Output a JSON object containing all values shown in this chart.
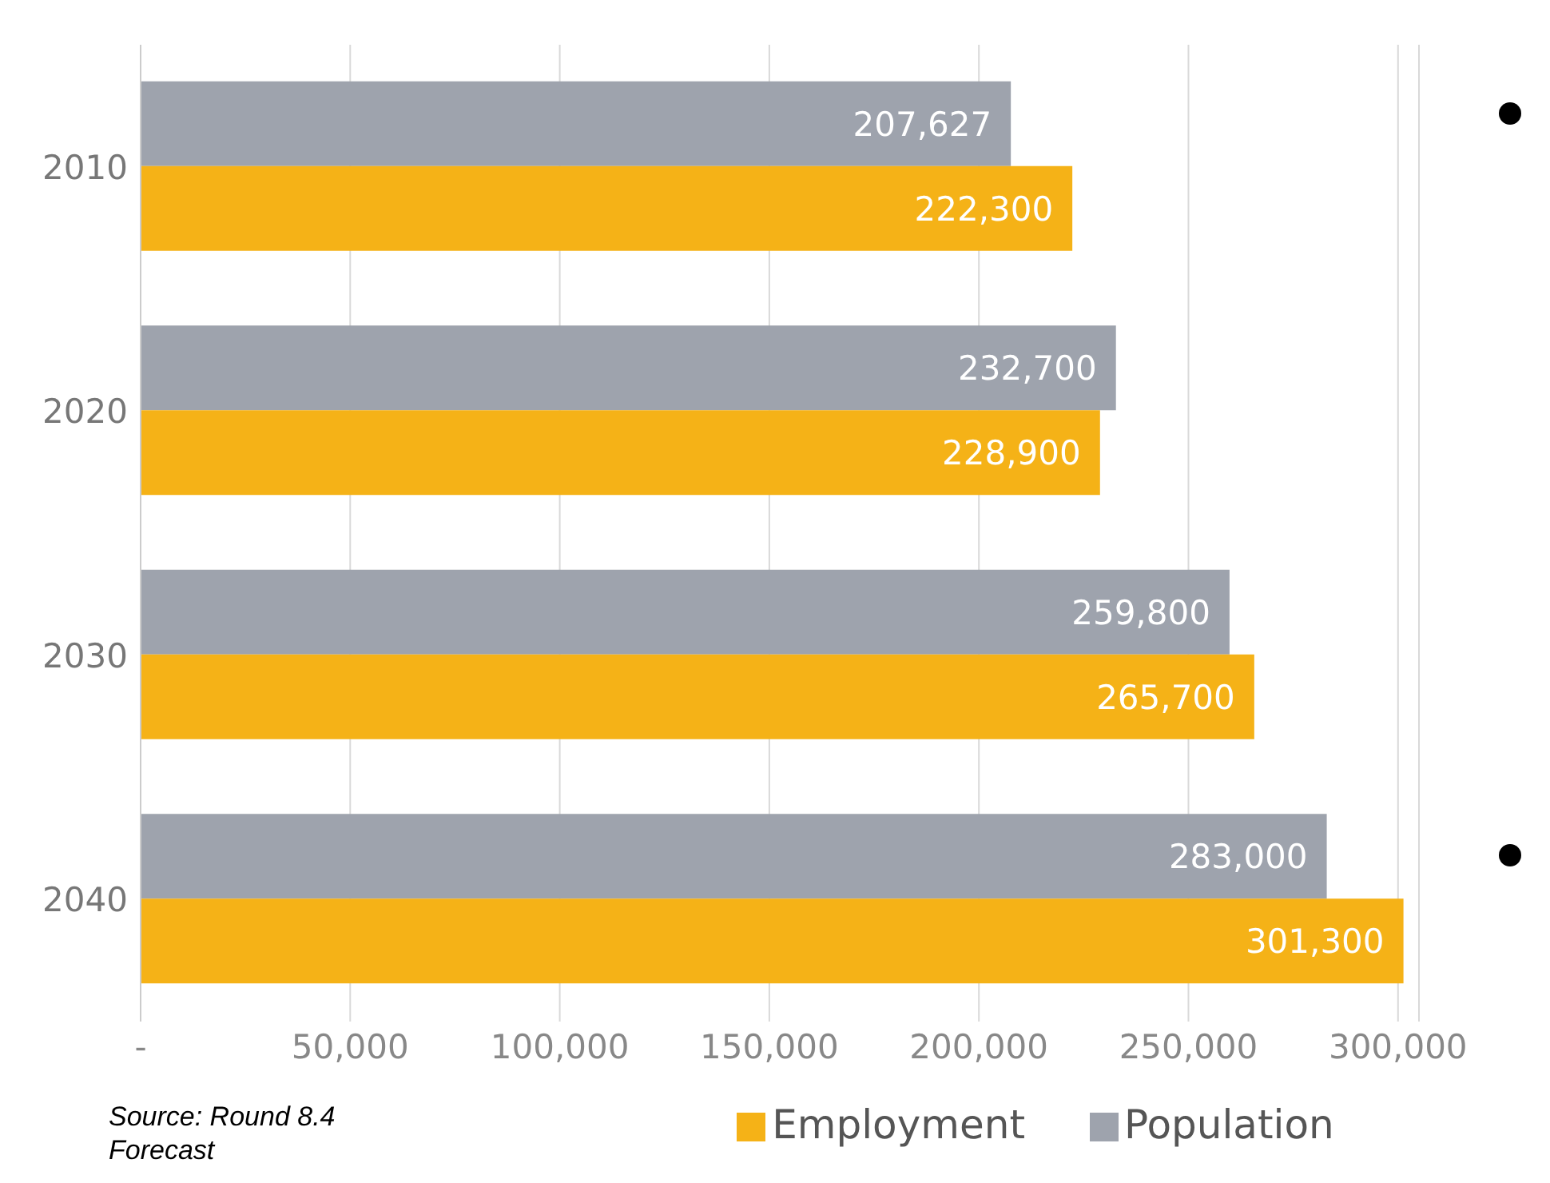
{
  "chart_data": {
    "type": "bar",
    "orientation": "horizontal",
    "categories": [
      "2010",
      "2020",
      "2030",
      "2040"
    ],
    "series": [
      {
        "name": "Population",
        "color": "#9ea3ad",
        "values": [
          207627,
          232700,
          259800,
          283000
        ],
        "value_labels": [
          "207,627",
          "232,700",
          "259,800",
          "283,000"
        ]
      },
      {
        "name": "Employment",
        "color": "#f5b217",
        "values": [
          222300,
          228900,
          265700,
          301300
        ],
        "value_labels": [
          "222,300",
          "228,900",
          "265,700",
          "301,300"
        ]
      }
    ],
    "xlim": [
      0,
      305000
    ],
    "xticks": [
      {
        "value": 0,
        "label": "-"
      },
      {
        "value": 50000,
        "label": "50,000"
      },
      {
        "value": 100000,
        "label": "100,000"
      },
      {
        "value": 150000,
        "label": "150,000"
      },
      {
        "value": 200000,
        "label": "200,000"
      },
      {
        "value": 250000,
        "label": "250,000"
      },
      {
        "value": 300000,
        "label": "300,000"
      }
    ],
    "grid": "x",
    "legend": "bottom",
    "annotations": [
      "Source: Round 8.4 Forecast"
    ]
  }
}
